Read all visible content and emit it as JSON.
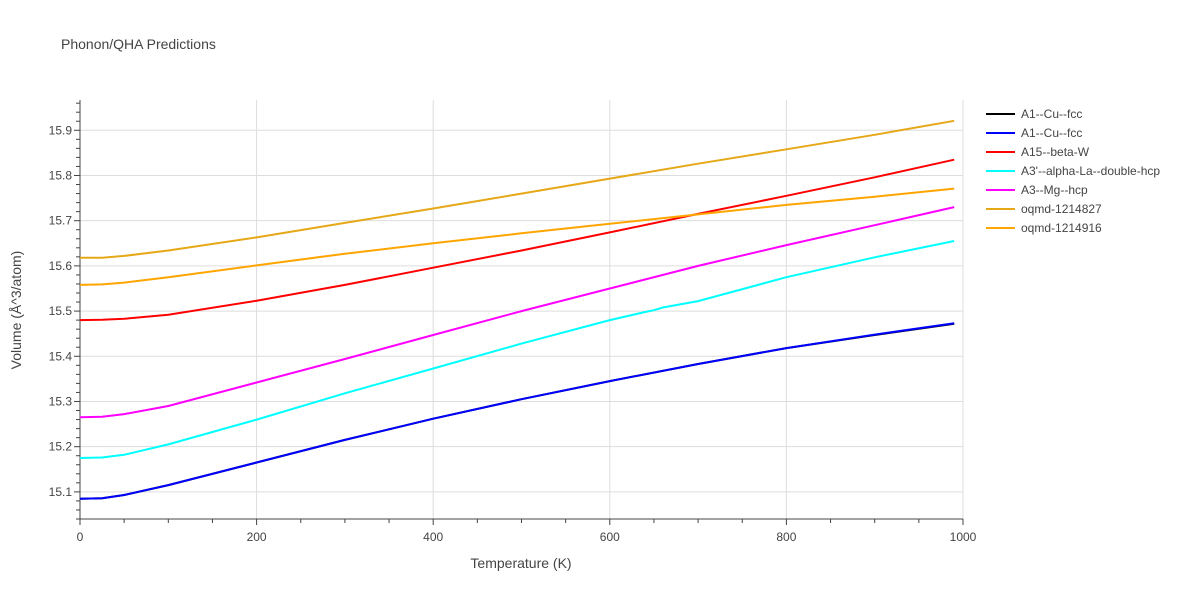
{
  "chart_data": {
    "type": "line",
    "title": "Phonon/QHA Predictions",
    "xlabel": "Temperature (K)",
    "ylabel": "Volume (Å^3/atom)",
    "xlim": [
      0,
      1000
    ],
    "ylim": [
      15.04,
      15.967
    ],
    "x_ticks": [
      0,
      200,
      400,
      600,
      800,
      1000
    ],
    "y_ticks": [
      15.1,
      15.2,
      15.3,
      15.4,
      15.5,
      15.6,
      15.7,
      15.8,
      15.9
    ],
    "grid": true,
    "legend_position": "right",
    "series": [
      {
        "name": "A1--Cu--fcc",
        "color": "#000000",
        "x": [
          0,
          25,
          50,
          100,
          200,
          300,
          400,
          500,
          600,
          700,
          800,
          900,
          990
        ],
        "y": [
          15.085,
          15.086,
          15.093,
          15.115,
          15.165,
          15.215,
          15.262,
          15.305,
          15.345,
          15.383,
          15.418,
          15.447,
          15.472
        ]
      },
      {
        "name": "A1--Cu--fcc",
        "color": "#0000ff",
        "x": [
          0,
          25,
          50,
          100,
          200,
          300,
          400,
          500,
          600,
          700,
          800,
          900,
          990
        ],
        "y": [
          15.085,
          15.086,
          15.093,
          15.115,
          15.165,
          15.215,
          15.262,
          15.305,
          15.345,
          15.383,
          15.418,
          15.448,
          15.473
        ]
      },
      {
        "name": "A15--beta-W",
        "color": "#ff0000",
        "x": [
          0,
          25,
          50,
          100,
          200,
          300,
          400,
          500,
          600,
          700,
          800,
          900,
          990
        ],
        "y": [
          15.48,
          15.481,
          15.483,
          15.492,
          15.523,
          15.558,
          15.596,
          15.634,
          15.674,
          15.715,
          15.755,
          15.796,
          15.835
        ]
      },
      {
        "name": "A3'--alpha-La--double-hcp",
        "color": "#00ffff",
        "x": [
          0,
          25,
          50,
          100,
          200,
          300,
          400,
          500,
          600,
          640,
          650,
          660,
          700,
          800,
          900,
          990
        ],
        "y": [
          15.175,
          15.176,
          15.182,
          15.205,
          15.26,
          15.318,
          15.373,
          15.428,
          15.48,
          15.498,
          15.502,
          15.508,
          15.522,
          15.575,
          15.619,
          15.655
        ]
      },
      {
        "name": "A3--Mg--hcp",
        "color": "#ff00ff",
        "x": [
          0,
          25,
          50,
          100,
          200,
          300,
          400,
          500,
          600,
          700,
          800,
          900,
          990
        ],
        "y": [
          15.265,
          15.266,
          15.272,
          15.29,
          15.342,
          15.394,
          15.447,
          15.5,
          15.55,
          15.6,
          15.646,
          15.69,
          15.73
        ]
      },
      {
        "name": "oqmd-1214827",
        "color": "#e6a817",
        "x": [
          0,
          25,
          50,
          100,
          200,
          300,
          400,
          500,
          600,
          700,
          800,
          900,
          990
        ],
        "y": [
          15.618,
          15.618,
          15.622,
          15.634,
          15.663,
          15.695,
          15.727,
          15.76,
          15.793,
          15.826,
          15.858,
          15.89,
          15.921
        ]
      },
      {
        "name": "oqmd-1214916",
        "color": "#ffa500",
        "x": [
          0,
          25,
          50,
          100,
          200,
          300,
          400,
          500,
          600,
          700,
          800,
          900,
          990
        ],
        "y": [
          15.558,
          15.559,
          15.563,
          15.575,
          15.601,
          15.627,
          15.65,
          15.672,
          15.693,
          15.714,
          15.735,
          15.753,
          15.771
        ]
      }
    ]
  }
}
